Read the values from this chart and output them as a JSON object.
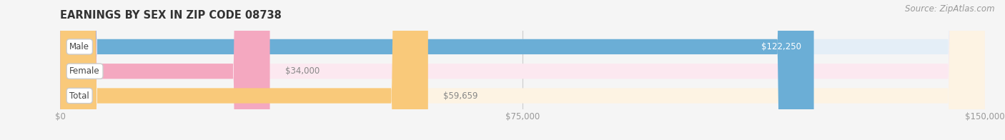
{
  "title": "EARNINGS BY SEX IN ZIP CODE 08738",
  "source": "Source: ZipAtlas.com",
  "categories": [
    "Male",
    "Female",
    "Total"
  ],
  "values": [
    122250,
    34000,
    59659
  ],
  "bar_colors": [
    "#6baed6",
    "#f4a8c0",
    "#f9c97a"
  ],
  "bar_bg_colors": [
    "#e4eef7",
    "#fce8f0",
    "#fdf3e3"
  ],
  "label_colors": [
    "#5a8ab0",
    "#c07090",
    "#b08040"
  ],
  "value_label_colors": [
    "#5a8ab0",
    "#888888",
    "#888888"
  ],
  "value_labels": [
    "$122,250",
    "$34,000",
    "$59,659"
  ],
  "xlim": [
    0,
    150000
  ],
  "xtick_labels": [
    "$0",
    "$75,000",
    "$150,000"
  ],
  "figsize": [
    14.06,
    1.96
  ],
  "dpi": 100,
  "background_color": "#f5f5f5"
}
